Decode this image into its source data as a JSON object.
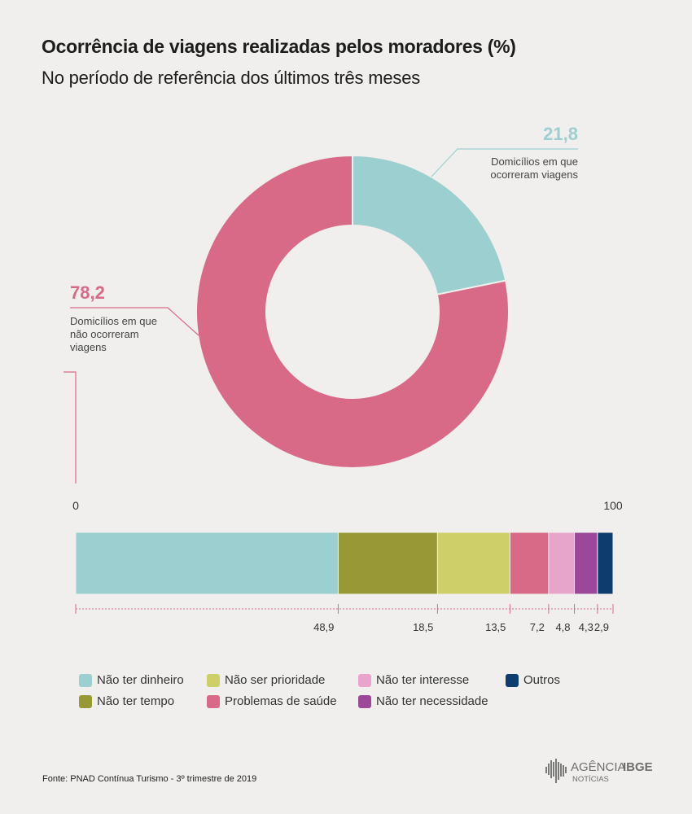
{
  "header": {
    "title": "Ocorrência de viagens realizadas pelos moradores (%)",
    "subtitle": "No período de referência dos últimos três meses"
  },
  "chart_data": [
    {
      "type": "pie",
      "donut": true,
      "slices": [
        {
          "label_lines": [
            "Domicílios em que",
            "ocorreram viagens"
          ],
          "value": 21.8,
          "display": "21,8",
          "color": "#9ccfcf"
        },
        {
          "label_lines": [
            "Domicílios em que",
            "não ocorreram",
            "viagens"
          ],
          "value": 78.2,
          "display": "78,2",
          "color": "#d86a88"
        }
      ]
    },
    {
      "type": "bar",
      "stacked": true,
      "orientation": "horizontal",
      "xlim": [
        0,
        100
      ],
      "axis_labels": {
        "min": "0",
        "max": "100"
      },
      "segments": [
        {
          "name": "Não ter dinheiro",
          "value": 48.9,
          "display": "48,9",
          "color": "#9ccfcf"
        },
        {
          "name": "Não ter tempo",
          "value": 18.5,
          "display": "18,5",
          "color": "#989834"
        },
        {
          "name": "Não ser prioridade",
          "value": 13.5,
          "display": "13,5",
          "color": "#cfcf6a"
        },
        {
          "name": "Problemas de saúde",
          "value": 7.2,
          "display": "7,2",
          "color": "#d86a88"
        },
        {
          "name": "Não ter interesse",
          "value": 4.8,
          "display": "4,8",
          "color": "#e8a5cb"
        },
        {
          "name": "Não ter necessidade",
          "value": 4.3,
          "display": "4,3",
          "color": "#9c4898"
        },
        {
          "name": "Outros",
          "value": 2.9,
          "display": "2,9",
          "color": "#0e3c6e"
        }
      ]
    }
  ],
  "legend": {
    "items": [
      {
        "label": "Não ter dinheiro",
        "color": "#9ccfcf"
      },
      {
        "label": "Não ter tempo",
        "color": "#989834"
      },
      {
        "label": "Não ser prioridade",
        "color": "#cfcf6a"
      },
      {
        "label": "Problemas de saúde",
        "color": "#d86a88"
      },
      {
        "label": "Não ter interesse",
        "color": "#e8a5cb"
      },
      {
        "label": "Não ter necessidade",
        "color": "#9c4898"
      },
      {
        "label": "Outros",
        "color": "#0e3c6e"
      }
    ]
  },
  "footer": {
    "source": "Fonte: PNAD Contínua Turismo - 3º trimestre de 2019",
    "logo_main": "AGÊNCIA",
    "logo_bold": "IBGE",
    "logo_sub": "NOTÍCIAS"
  }
}
